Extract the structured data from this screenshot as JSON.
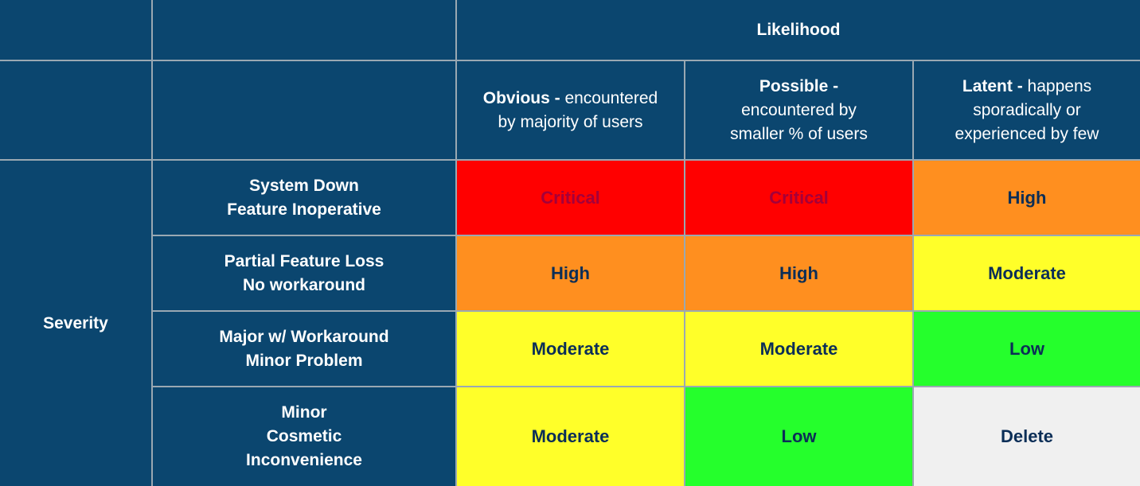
{
  "header": {
    "likelihood": "Likelihood"
  },
  "columns": [
    {
      "bold": "Obvious -",
      "rest": "encountered",
      "line2": "by majority of users",
      "line3": ""
    },
    {
      "bold": "Possible -",
      "rest": "",
      "line2": "encountered by",
      "line3": "smaller % of users"
    },
    {
      "bold": "Latent -",
      "rest": "happens",
      "line2": "sporadically or",
      "line3": "experienced by few"
    }
  ],
  "severity_label": "Severity",
  "rows": [
    {
      "lines": [
        "System Down",
        "Feature Inoperative"
      ]
    },
    {
      "lines": [
        "Partial Feature Loss",
        "No workaround"
      ]
    },
    {
      "lines": [
        "Major w/ Workaround",
        "Minor Problem"
      ]
    },
    {
      "lines": [
        "Minor",
        "Cosmetic",
        "Inconvenience"
      ]
    }
  ],
  "matrix": [
    [
      "Critical",
      "Critical",
      "High"
    ],
    [
      "High",
      "High",
      "Moderate"
    ],
    [
      "Moderate",
      "Moderate",
      "Low"
    ],
    [
      "Moderate",
      "Low",
      "Delete"
    ]
  ],
  "colors": {
    "header_bg": "#0b466f",
    "critical": "#ff0000",
    "high": "#ff8f1f",
    "moderate": "#ffff29",
    "low": "#25ff2c",
    "delete": "#f0f0f0",
    "risk_text": "#0b2e57"
  }
}
